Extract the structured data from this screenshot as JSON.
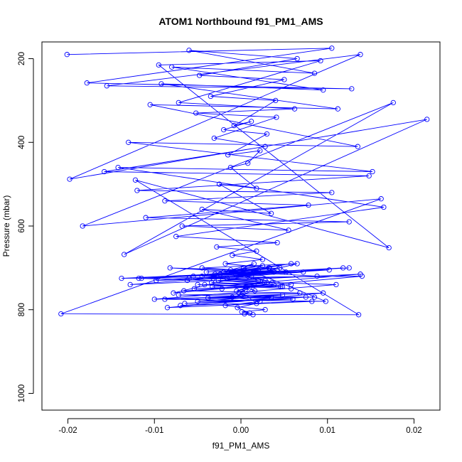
{
  "chart_data": {
    "type": "line",
    "title": "ATOM1 Northbound f91_PM1_AMS",
    "xlabel": "f91_PM1_AMS",
    "ylabel": "Pressure (mbar)",
    "xlim": [
      -0.023,
      0.023
    ],
    "ylim": [
      1040,
      160
    ],
    "y_reversed": true,
    "xticks": [
      -0.02,
      -0.01,
      0.0,
      0.01,
      0.02
    ],
    "xtick_labels": [
      "-0.02",
      "-0.01",
      "0.00",
      "0.01",
      "0.02"
    ],
    "yticks": [
      200,
      400,
      600,
      800,
      1000
    ],
    "ytick_labels": [
      "200",
      "400",
      "600",
      "800",
      "1000"
    ],
    "grid": false,
    "legend": "none",
    "colors": {
      "series": "#0000ff",
      "frame": "#000000",
      "background": "#ffffff"
    },
    "series": [
      {
        "marker": "open-circle",
        "connected": true,
        "x": [
          -0.0201,
          0.0105,
          -0.0178,
          0.0128,
          -0.0155,
          0.0138,
          -0.0198,
          0.0215,
          -0.0135,
          0.0176,
          -0.0183,
          0.0162,
          -0.0208,
          0.0136,
          -0.0122,
          0.0171,
          -0.0095,
          0.0092,
          -0.0072,
          0.0062,
          -0.0052,
          0.0041,
          -0.0031,
          0.0028,
          -0.0158,
          0.0148,
          -0.012,
          0.0105,
          -0.0088,
          0.0078,
          -0.011,
          0.0125,
          -0.0068,
          0.0055,
          -0.0045,
          0.0035,
          -0.0025,
          0.0018,
          -0.0012,
          0.0008,
          0.0022,
          -0.0015,
          0.003,
          -0.002,
          0.0012,
          -0.0008,
          0.004,
          -0.0035,
          0.005,
          -0.0048,
          0.0065,
          -0.006,
          0.0085,
          -0.008,
          0.0095,
          -0.0092,
          0.0112,
          -0.0105,
          0.0135,
          -0.013,
          0.0152,
          -0.0142,
          0.0165,
          -0.0075,
          0.0042,
          -0.0028,
          0.0018,
          -0.001,
          0.0025,
          -0.0018,
          0.0032,
          -0.004,
          0.0045,
          -0.0055,
          0.0058,
          -0.0062,
          0.0072,
          -0.0082,
          0.0088,
          -0.0098,
          0.0102,
          -0.0115,
          0.0118,
          -0.0128,
          0.0138,
          -0.0033,
          0.0027,
          -0.0022,
          0.0015,
          -0.0005,
          0.001,
          -0.0002,
          0.0005,
          0.0001,
          0.0035,
          -0.0038,
          0.0048,
          -0.005,
          0.006,
          -0.0065,
          0.0075,
          -0.007,
          0.0082,
          -0.0085,
          0.0095,
          -0.01,
          0.011,
          -0.0118,
          0.0125,
          -0.0138,
          0.014,
          -0.0078,
          0.0065,
          -0.0045,
          0.0038,
          -0.0024,
          0.002,
          -0.0014,
          0.0012,
          -0.0006,
          0.0028,
          -0.0032,
          0.0036,
          -0.0042,
          0.0046,
          -0.0054,
          0.0058,
          -0.0066,
          0.0068,
          -0.0072,
          0.0085,
          -0.0088,
          0.0098,
          0.0003,
          0.0015,
          -0.0012,
          0.0025,
          -0.002,
          0.0033,
          -0.003,
          0.0042,
          -0.0045,
          0.0052,
          -0.006,
          0.0008,
          0.002,
          -0.0016,
          0.003,
          -0.0026,
          0.0038,
          -0.0034,
          0.0048,
          -0.005,
          0.0058,
          0.0006,
          0.0016,
          -0.001,
          0.0022,
          -0.0018,
          0.0028,
          0.0001,
          0.001,
          0.0004,
          0.0014,
          -0.0004,
          0.0018,
          0.0002
        ],
        "y": [
          190,
          175,
          258,
          272,
          265,
          190,
          488,
          345,
          668,
          305,
          600,
          535,
          810,
          812,
          490,
          652,
          215,
          205,
          305,
          320,
          330,
          340,
          390,
          410,
          470,
          480,
          515,
          520,
          540,
          550,
          580,
          590,
          600,
          610,
          560,
          570,
          500,
          510,
          460,
          450,
          420,
          430,
          380,
          370,
          350,
          360,
          300,
          290,
          250,
          240,
          200,
          180,
          235,
          220,
          275,
          260,
          320,
          310,
          410,
          400,
          470,
          460,
          555,
          625,
          640,
          650,
          660,
          670,
          680,
          690,
          700,
          710,
          700,
          720,
          690,
          730,
          710,
          700,
          720,
          730,
          705,
          725,
          700,
          740,
          715,
          745,
          735,
          750,
          742,
          755,
          748,
          760,
          752,
          765,
          770,
          772,
          765,
          780,
          775,
          785,
          770,
          790,
          780,
          795,
          760,
          775,
          740,
          725,
          700,
          725,
          720,
          760,
          690,
          700,
          710,
          715,
          705,
          710,
          720,
          715,
          730,
          725,
          735,
          740,
          745,
          750,
          740,
          755,
          760,
          765,
          770,
          775,
          780,
          700,
          690,
          705,
          695,
          710,
          700,
          715,
          705,
          720,
          710,
          725,
          720,
          730,
          725,
          735,
          730,
          740,
          735,
          745,
          740,
          750,
          745,
          755,
          770,
          780,
          790,
          800,
          805,
          808,
          810,
          812,
          795,
          785,
          760
        ]
      }
    ]
  }
}
